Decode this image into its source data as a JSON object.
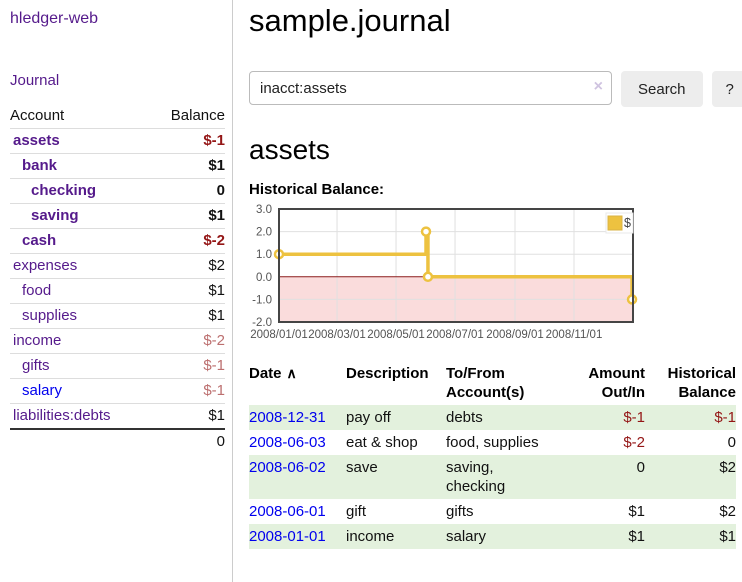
{
  "sidebar": {
    "brand": "hledger-web",
    "journal_link": "Journal",
    "accounts_table": {
      "headers": {
        "account": "Account",
        "balance": "Balance"
      },
      "rows": [
        {
          "name": "assets",
          "indent": 1,
          "balance": "$-1",
          "bold": true,
          "neg": "strong"
        },
        {
          "name": "bank",
          "indent": 2,
          "balance": "$1",
          "bold": true
        },
        {
          "name": "checking",
          "indent": 3,
          "balance": "0",
          "bold": true
        },
        {
          "name": "saving",
          "indent": 3,
          "balance": "$1",
          "bold": true
        },
        {
          "name": "cash",
          "indent": 2,
          "balance": "$-2",
          "bold": true,
          "neg": "strong"
        },
        {
          "name": "expenses",
          "indent": 1,
          "balance": "$2"
        },
        {
          "name": "food",
          "indent": 2,
          "balance": "$1"
        },
        {
          "name": "supplies",
          "indent": 2,
          "balance": "$1"
        },
        {
          "name": "income",
          "indent": 1,
          "balance": "$-2",
          "neg": "soft"
        },
        {
          "name": "gifts",
          "indent": 2,
          "balance": "$-1",
          "neg": "soft"
        },
        {
          "name": "salary",
          "indent": 2,
          "balance": "$-1",
          "neg": "soft",
          "link": "blue"
        },
        {
          "name": "liabilities:debts",
          "indent": 1,
          "balance": "$1"
        }
      ],
      "total": "0"
    }
  },
  "header": {
    "title": "sample.journal"
  },
  "search": {
    "value": "inacct:assets",
    "clear_glyph": "×",
    "search_button": "Search",
    "help_button": "?"
  },
  "account_page": {
    "heading": "assets"
  },
  "chart_data": {
    "type": "line",
    "step": true,
    "title": "Historical Balance:",
    "series": [
      {
        "name": "$",
        "color": "#edc240",
        "points": [
          [
            "2008-01-01",
            1
          ],
          [
            "2008-06-01",
            2
          ],
          [
            "2008-06-03",
            0
          ],
          [
            "2008-12-31",
            -1
          ]
        ]
      }
    ],
    "ylim": [
      -2,
      3
    ],
    "yticks": [
      {
        "v": 3,
        "label": "3.0"
      },
      {
        "v": 2,
        "label": "2.0"
      },
      {
        "v": 1,
        "label": "1.0"
      },
      {
        "v": 0,
        "label": "0.0"
      },
      {
        "v": -1,
        "label": "-1.0"
      },
      {
        "v": -2,
        "label": "-2.0"
      }
    ],
    "xdomain": [
      "2008-01-01",
      "2009-01-01"
    ],
    "xticks": [
      {
        "date": "2008-01-01",
        "label": "2008/01/01"
      },
      {
        "date": "2008-03-01",
        "label": "2008/03/01"
      },
      {
        "date": "2008-05-01",
        "label": "2008/05/01"
      },
      {
        "date": "2008-07-01",
        "label": "2008/07/01"
      },
      {
        "date": "2008-09-01",
        "label": "2008/09/01"
      },
      {
        "date": "2008-11-01",
        "label": "2008/11/01"
      }
    ],
    "grid": true,
    "negative_region_fill": "#fadcdc",
    "zero_line_color": "#8b1a1a",
    "tick_label_color": "#545454",
    "border_color": "#454545",
    "legend": {
      "label": "$",
      "position": "top-right"
    }
  },
  "transactions": {
    "sort_icon_glyph": "∧",
    "headers": [
      {
        "line1": "Date",
        "line2": "",
        "align": "left",
        "sorted": true
      },
      {
        "line1": "Description",
        "line2": "",
        "align": "left"
      },
      {
        "line1": "To/From",
        "line2": "Account(s)",
        "align": "left"
      },
      {
        "line1": "Amount",
        "line2": "Out/In",
        "align": "right"
      },
      {
        "line1": "Historical",
        "line2": "Balance",
        "align": "right"
      }
    ],
    "rows": [
      {
        "date": "2008-12-31",
        "description": "pay off",
        "accounts": "debts",
        "amount": "$-1",
        "amount_neg": true,
        "balance": "$-1",
        "balance_neg": true,
        "stripe": true
      },
      {
        "date": "2008-06-03",
        "description": "eat & shop",
        "accounts": "food, supplies",
        "amount": "$-2",
        "amount_neg": true,
        "balance": "0",
        "balance_neg": false,
        "stripe": false
      },
      {
        "date": "2008-06-02",
        "description": "save",
        "accounts": "saving, checking",
        "amount": "0",
        "amount_neg": false,
        "balance": "$2",
        "balance_neg": false,
        "stripe": true
      },
      {
        "date": "2008-06-01",
        "description": "gift",
        "accounts": "gifts",
        "amount": "$1",
        "amount_neg": false,
        "balance": "$2",
        "balance_neg": false,
        "stripe": false
      },
      {
        "date": "2008-01-01",
        "description": "income",
        "accounts": "salary",
        "amount": "$1",
        "amount_neg": false,
        "balance": "$1",
        "balance_neg": false,
        "stripe": true
      }
    ]
  }
}
